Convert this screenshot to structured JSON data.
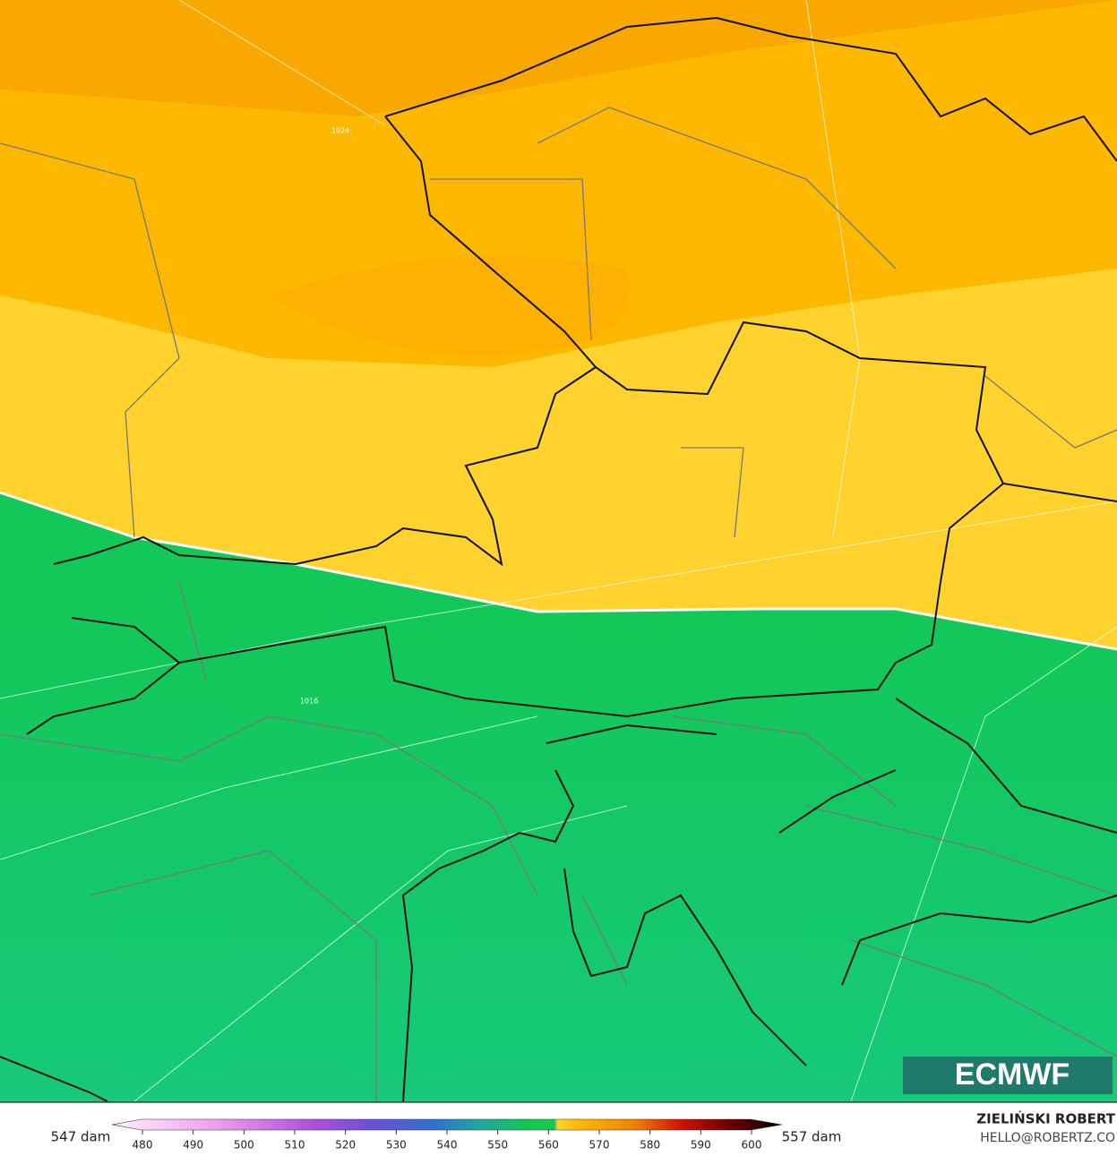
{
  "map": {
    "isobar_labels": [
      "1024",
      "1016"
    ]
  },
  "colorbar": {
    "range": [
      474,
      606
    ],
    "ticks": [
      480,
      490,
      500,
      510,
      520,
      530,
      540,
      550,
      560,
      570,
      580,
      590,
      600
    ],
    "min_label": "547 dam",
    "max_label": "557 dam"
  },
  "logo": "ECMWF",
  "credit": {
    "name": "ZIELIŃSKI ROBERT",
    "email": "HELLO@ROBERTZ.CO"
  }
}
